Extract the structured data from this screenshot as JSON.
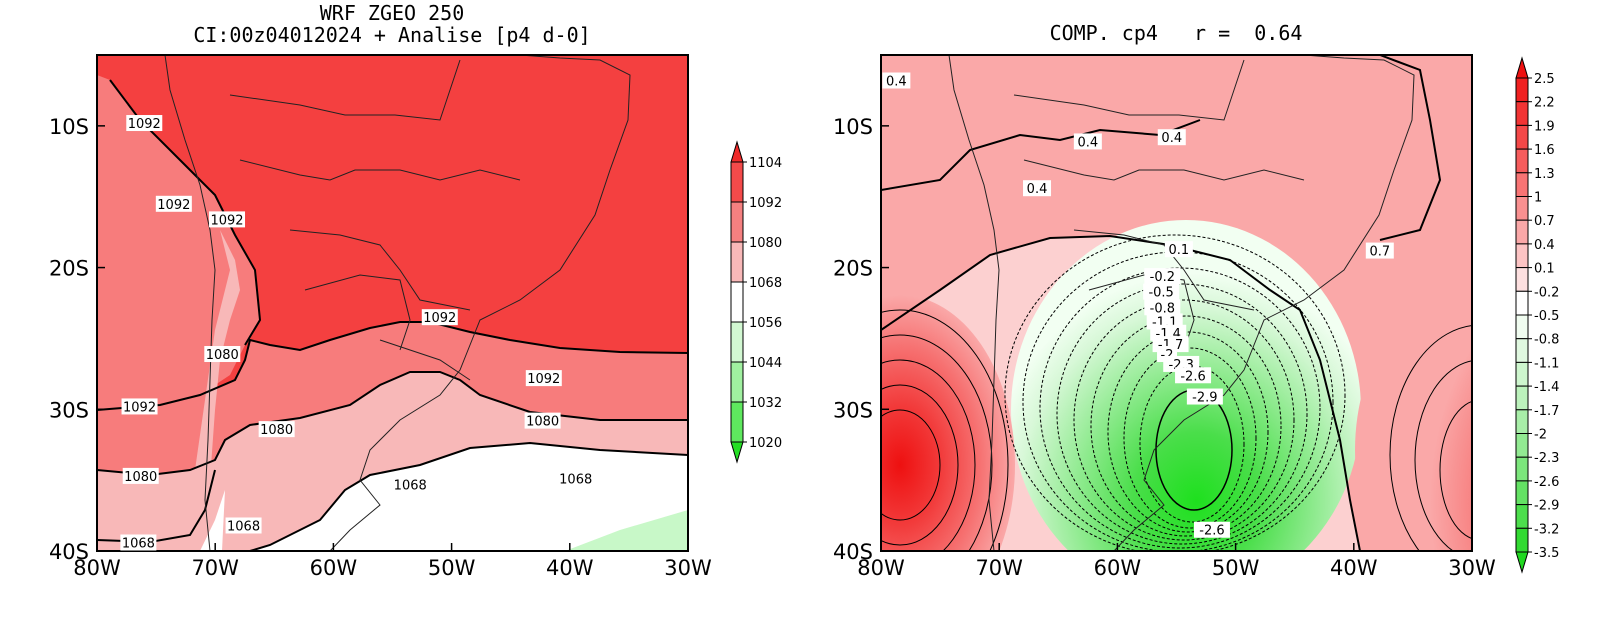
{
  "left_panel": {
    "title_line1": "WRF ZGEO 250",
    "title_line2": "CI:00z04012024 + Analise  [p4 d-0]",
    "x_ticks": [
      "80W",
      "70W",
      "60W",
      "50W",
      "40W",
      "30W"
    ],
    "y_ticks": [
      "10S",
      "20S",
      "30S",
      "40S"
    ],
    "colorbar_labels": [
      "1104",
      "1092",
      "1080",
      "1068",
      "1056",
      "1044",
      "1032",
      "1020"
    ],
    "colorbar_colors": [
      "#f02a2a",
      "#f44a4a",
      "#f58080",
      "#f8b8b8",
      "#ffffff",
      "#d2f8d2",
      "#a0f0a0",
      "#5ee85e",
      "#24e024"
    ],
    "contour_labels": [
      {
        "text": "1092",
        "x_deg": -76,
        "y_deg": -9.8
      },
      {
        "text": "1092",
        "x_deg": -73.5,
        "y_deg": -15.5
      },
      {
        "text": "1092",
        "x_deg": -69,
        "y_deg": -16.6
      },
      {
        "text": "1092",
        "x_deg": -51,
        "y_deg": -23.5
      },
      {
        "text": "1092",
        "x_deg": -42.2,
        "y_deg": -27.8
      },
      {
        "text": "1092",
        "x_deg": -76.4,
        "y_deg": -29.8
      },
      {
        "text": "1080",
        "x_deg": -69.4,
        "y_deg": -26.1
      },
      {
        "text": "1080",
        "x_deg": -64.8,
        "y_deg": -31.4
      },
      {
        "text": "1080",
        "x_deg": -42.3,
        "y_deg": -30.8
      },
      {
        "text": "1080",
        "x_deg": -76.3,
        "y_deg": -34.7
      },
      {
        "text": "1068",
        "x_deg": -53.5,
        "y_deg": -35.3
      },
      {
        "text": "1068",
        "x_deg": -39.5,
        "y_deg": -34.9
      },
      {
        "text": "1068",
        "x_deg": -67.6,
        "y_deg": -38.2
      },
      {
        "text": "1068",
        "x_deg": -76.5,
        "y_deg": -39.4
      }
    ]
  },
  "right_panel": {
    "title": "COMP. cp4   r =  0.64",
    "x_ticks": [
      "80W",
      "70W",
      "60W",
      "50W",
      "40W",
      "30W"
    ],
    "y_ticks": [
      "10S",
      "20S",
      "30S",
      "40S"
    ],
    "colorbar_labels": [
      "2.5",
      "2.2",
      "1.9",
      "1.6",
      "1.3",
      "1",
      "0.7",
      "0.4",
      "0.1",
      "-0.2",
      "-0.5",
      "-0.8",
      "-1.1",
      "-1.4",
      "-1.7",
      "-2",
      "-2.3",
      "-2.6",
      "-2.9",
      "-3.2",
      "-3.5"
    ],
    "colorbar_colors": [
      "#ee1010",
      "#f02020",
      "#f23434",
      "#f44848",
      "#f65c5c",
      "#f87474",
      "#f99090",
      "#faa8a8",
      "#fcc4c4",
      "#fde0e0",
      "#ffffff",
      "#f0fcf0",
      "#e0f8e0",
      "#cef6ce",
      "#bcf2bc",
      "#a8eea8",
      "#92ea92",
      "#7ce67c",
      "#64e264",
      "#4cde4c",
      "#32da32",
      "#20d820"
    ],
    "contour_labels": [
      {
        "text": "0.4",
        "x_deg": -78.7,
        "y_deg": -6.8
      },
      {
        "text": "0.4",
        "x_deg": -62.5,
        "y_deg": -11.1
      },
      {
        "text": "0.4",
        "x_deg": -55.4,
        "y_deg": -10.8
      },
      {
        "text": "0.4",
        "x_deg": -66.8,
        "y_deg": -14.4
      },
      {
        "text": "0.1",
        "x_deg": -54.8,
        "y_deg": -18.7
      },
      {
        "text": "0.7",
        "x_deg": -37.8,
        "y_deg": -18.8
      },
      {
        "text": "-0.2",
        "x_deg": -56.2,
        "y_deg": -20.6
      },
      {
        "text": "-0.5",
        "x_deg": -56.3,
        "y_deg": -21.7
      },
      {
        "text": "-0.8",
        "x_deg": -56.2,
        "y_deg": -22.8
      },
      {
        "text": "-1.1",
        "x_deg": -56,
        "y_deg": -23.8
      },
      {
        "text": "-1.4",
        "x_deg": -55.7,
        "y_deg": -24.6
      },
      {
        "text": "-1.7",
        "x_deg": -55.5,
        "y_deg": -25.4
      },
      {
        "text": "-2",
        "x_deg": -55.8,
        "y_deg": -26.1
      },
      {
        "text": "-2.3",
        "x_deg": -54.6,
        "y_deg": -26.8
      },
      {
        "text": "-2.6",
        "x_deg": -53.6,
        "y_deg": -27.6
      },
      {
        "text": "-2.9",
        "x_deg": -52.6,
        "y_deg": -29.1
      },
      {
        "text": "-2.6",
        "x_deg": -52,
        "y_deg": -38.5
      }
    ]
  }
}
